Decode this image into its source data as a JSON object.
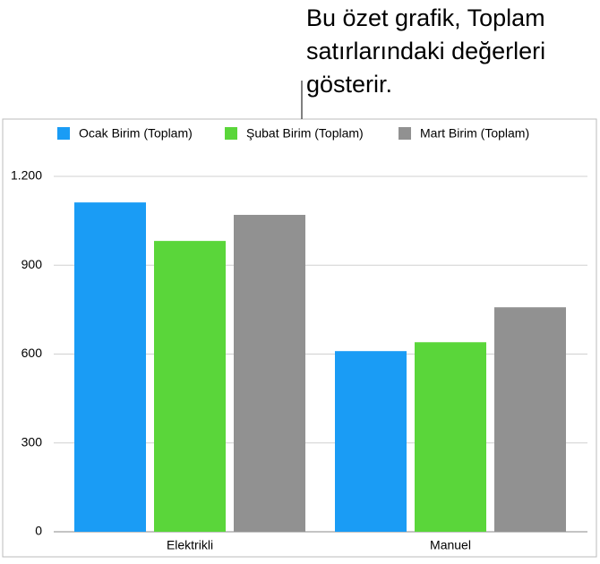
{
  "chart_data": {
    "type": "bar",
    "annotation": [
      "Bu özet grafik, Toplam",
      "satırlarındaki değerleri",
      "gösterir."
    ],
    "categories": [
      "Elektrikli",
      "Manuel"
    ],
    "series": [
      {
        "name": "Ocak Birim (Toplam)",
        "color": "#1a9cf5",
        "values": [
          1112,
          610
        ]
      },
      {
        "name": "Şubat Birim (Toplam)",
        "color": "#5ad63a",
        "values": [
          982,
          640
        ]
      },
      {
        "name": "Mart Birim (Toplam)",
        "color": "#919191",
        "values": [
          1070,
          758
        ]
      }
    ],
    "ylim": [
      0,
      1200
    ],
    "yticks": [
      0,
      300,
      600,
      900,
      {
        "value": 1200,
        "label": "1.200"
      }
    ],
    "grid": true,
    "legend": "top"
  }
}
